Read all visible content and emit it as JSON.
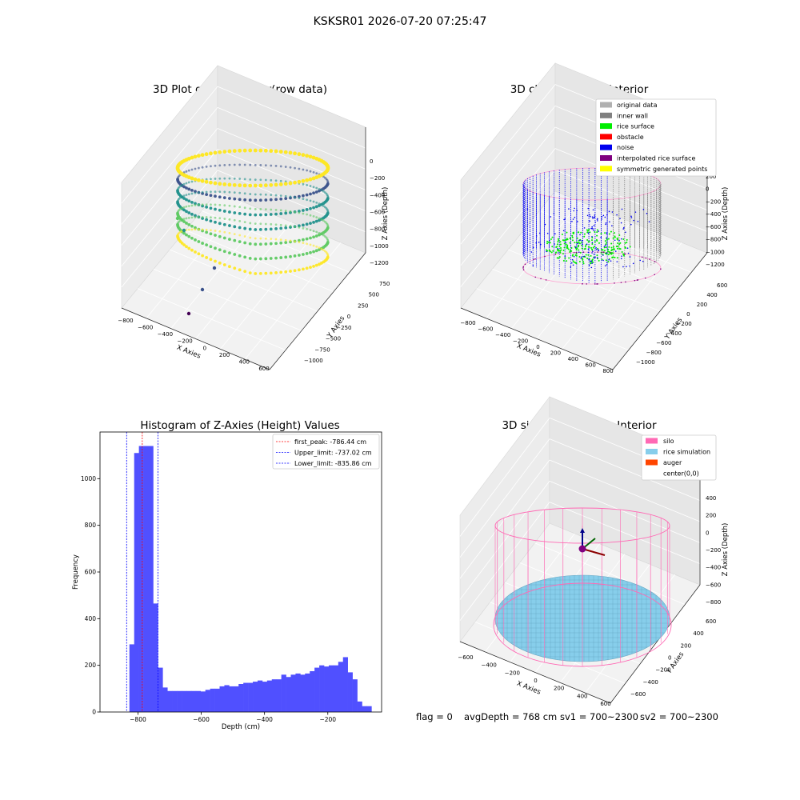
{
  "figure": {
    "suptitle": "KSKSR01 2026-07-20 07:25:47",
    "footer": {
      "flag": "flag = 0",
      "avg_depth": "avgDepth = 768 cm",
      "sv1": "sv1 = 700~2300",
      "sv2": "sv2 = 700~2300"
    }
  },
  "panels": {
    "raw": {
      "title": "3D Plot of Silo Interior(row data)",
      "xlabel": "X Axies",
      "ylabel": "Y Axies",
      "zlabel": "Z Axies (Depth)",
      "x_ticks": [
        "−800",
        "−600",
        "−400",
        "−200",
        "0",
        "200",
        "400",
        "600"
      ],
      "y_ticks": [
        "−1000",
        "−750",
        "−500",
        "−250",
        "0",
        "250",
        "500",
        "750"
      ],
      "z_ticks": [
        "0",
        "−200",
        "−400",
        "−600",
        "−800",
        "−1000",
        "−1200"
      ],
      "colormap": [
        "#440154",
        "#3b528b",
        "#21918c",
        "#5ec962",
        "#fde725"
      ]
    },
    "classify": {
      "title": "3D classify of Silo Interior",
      "xlabel": "X Axies",
      "ylabel": "Y Axies",
      "zlabel": "Z Axies (Depth)",
      "x_ticks": [
        "−800",
        "−600",
        "−400",
        "−200",
        "0",
        "200",
        "400",
        "600",
        "800"
      ],
      "y_ticks": [
        "−1000",
        "−800",
        "−600",
        "−400",
        "−200",
        "0",
        "200",
        "400",
        "600"
      ],
      "z_ticks": [
        "200",
        "0",
        "−200",
        "−400",
        "−600",
        "−800",
        "−1000",
        "−1200"
      ],
      "legend": [
        {
          "label": "original data",
          "color": "#b0b0b0"
        },
        {
          "label": "inner wall",
          "color": "#808080"
        },
        {
          "label": "rice surface",
          "color": "#00ee00"
        },
        {
          "label": "obstacle",
          "color": "#ff0000"
        },
        {
          "label": "noise",
          "color": "#0000ee"
        },
        {
          "label": "interpolated rice surface",
          "color": "#800080"
        },
        {
          "label": "symmetric generated points",
          "color": "#ffff00"
        }
      ]
    },
    "simulation": {
      "title": "3D simulation of Silo Interior",
      "xlabel": "X Axies",
      "ylabel": "Y Axies",
      "zlabel": "Z Axies (Depth)",
      "x_ticks": [
        "−600",
        "−400",
        "−200",
        "0",
        "200",
        "400",
        "600"
      ],
      "y_ticks": [
        "−600",
        "−400",
        "−200",
        "0",
        "200",
        "400",
        "600"
      ],
      "z_ticks": [
        "400",
        "200",
        "0",
        "−200",
        "−400",
        "−600",
        "−800"
      ],
      "legend": [
        {
          "label": "silo",
          "color": "#ff69b4"
        },
        {
          "label": "rice simulation",
          "color": "#87ceeb"
        },
        {
          "label": "auger",
          "color": "#ff4500"
        },
        {
          "label": "center(0,0)",
          "color": "#ffffff"
        }
      ]
    }
  },
  "chart_data": {
    "type": "bar",
    "title": "Histogram of Z-Axies (Height) Values",
    "xlabel": "Depth (cm)",
    "ylabel": "Frequency",
    "xlim": [
      -920,
      -30
    ],
    "ylim": [
      0,
      1200
    ],
    "x_ticks": [
      -800,
      -600,
      -400,
      -200
    ],
    "x_tick_labels": [
      "−800",
      "−600",
      "−400",
      "−200"
    ],
    "y_ticks": [
      0,
      200,
      400,
      600,
      800,
      1000
    ],
    "bar_color": "#5050ff",
    "bins": [
      {
        "x0": -827,
        "x1": -812,
        "value": 290
      },
      {
        "x0": -812,
        "x1": -797,
        "value": 1110
      },
      {
        "x0": -797,
        "x1": -782,
        "value": 1140
      },
      {
        "x0": -782,
        "x1": -767,
        "value": 1140
      },
      {
        "x0": -767,
        "x1": -752,
        "value": 1140
      },
      {
        "x0": -752,
        "x1": -737,
        "value": 465
      },
      {
        "x0": -737,
        "x1": -722,
        "value": 190
      },
      {
        "x0": -722,
        "x1": -707,
        "value": 105
      },
      {
        "x0": -707,
        "x1": -692,
        "value": 90
      },
      {
        "x0": -692,
        "x1": -677,
        "value": 90
      },
      {
        "x0": -677,
        "x1": -662,
        "value": 90
      },
      {
        "x0": -662,
        "x1": -647,
        "value": 90
      },
      {
        "x0": -647,
        "x1": -632,
        "value": 90
      },
      {
        "x0": -632,
        "x1": -617,
        "value": 90
      },
      {
        "x0": -617,
        "x1": -602,
        "value": 90
      },
      {
        "x0": -602,
        "x1": -587,
        "value": 88
      },
      {
        "x0": -587,
        "x1": -572,
        "value": 95
      },
      {
        "x0": -572,
        "x1": -557,
        "value": 100
      },
      {
        "x0": -557,
        "x1": -542,
        "value": 100
      },
      {
        "x0": -542,
        "x1": -527,
        "value": 110
      },
      {
        "x0": -527,
        "x1": -512,
        "value": 115
      },
      {
        "x0": -512,
        "x1": -497,
        "value": 110
      },
      {
        "x0": -497,
        "x1": -482,
        "value": 110
      },
      {
        "x0": -482,
        "x1": -467,
        "value": 120
      },
      {
        "x0": -467,
        "x1": -452,
        "value": 125
      },
      {
        "x0": -452,
        "x1": -437,
        "value": 125
      },
      {
        "x0": -437,
        "x1": -422,
        "value": 130
      },
      {
        "x0": -422,
        "x1": -407,
        "value": 135
      },
      {
        "x0": -407,
        "x1": -392,
        "value": 130
      },
      {
        "x0": -392,
        "x1": -377,
        "value": 135
      },
      {
        "x0": -377,
        "x1": -362,
        "value": 140
      },
      {
        "x0": -362,
        "x1": -347,
        "value": 140
      },
      {
        "x0": -347,
        "x1": -332,
        "value": 160
      },
      {
        "x0": -332,
        "x1": -317,
        "value": 150
      },
      {
        "x0": -317,
        "x1": -302,
        "value": 160
      },
      {
        "x0": -302,
        "x1": -287,
        "value": 165
      },
      {
        "x0": -287,
        "x1": -272,
        "value": 160
      },
      {
        "x0": -272,
        "x1": -257,
        "value": 165
      },
      {
        "x0": -257,
        "x1": -242,
        "value": 175
      },
      {
        "x0": -242,
        "x1": -227,
        "value": 190
      },
      {
        "x0": -227,
        "x1": -212,
        "value": 200
      },
      {
        "x0": -212,
        "x1": -197,
        "value": 195
      },
      {
        "x0": -197,
        "x1": -182,
        "value": 200
      },
      {
        "x0": -182,
        "x1": -167,
        "value": 200
      },
      {
        "x0": -167,
        "x1": -152,
        "value": 215
      },
      {
        "x0": -152,
        "x1": -137,
        "value": 235
      },
      {
        "x0": -137,
        "x1": -122,
        "value": 170
      },
      {
        "x0": -122,
        "x1": -107,
        "value": 140
      },
      {
        "x0": -107,
        "x1": -92,
        "value": 45
      },
      {
        "x0": -92,
        "x1": -77,
        "value": 25
      },
      {
        "x0": -77,
        "x1": -62,
        "value": 25
      }
    ],
    "lines": [
      {
        "label": "first_peak: -786.44 cm",
        "x": -786.44,
        "color": "#ff0000"
      },
      {
        "label": "Upper_limit: -737.02 cm",
        "x": -737.02,
        "color": "#0000ff"
      },
      {
        "label": "Lower_limit: -835.86 cm",
        "x": -835.86,
        "color": "#0000ff"
      }
    ],
    "legend_position": "upper right"
  }
}
